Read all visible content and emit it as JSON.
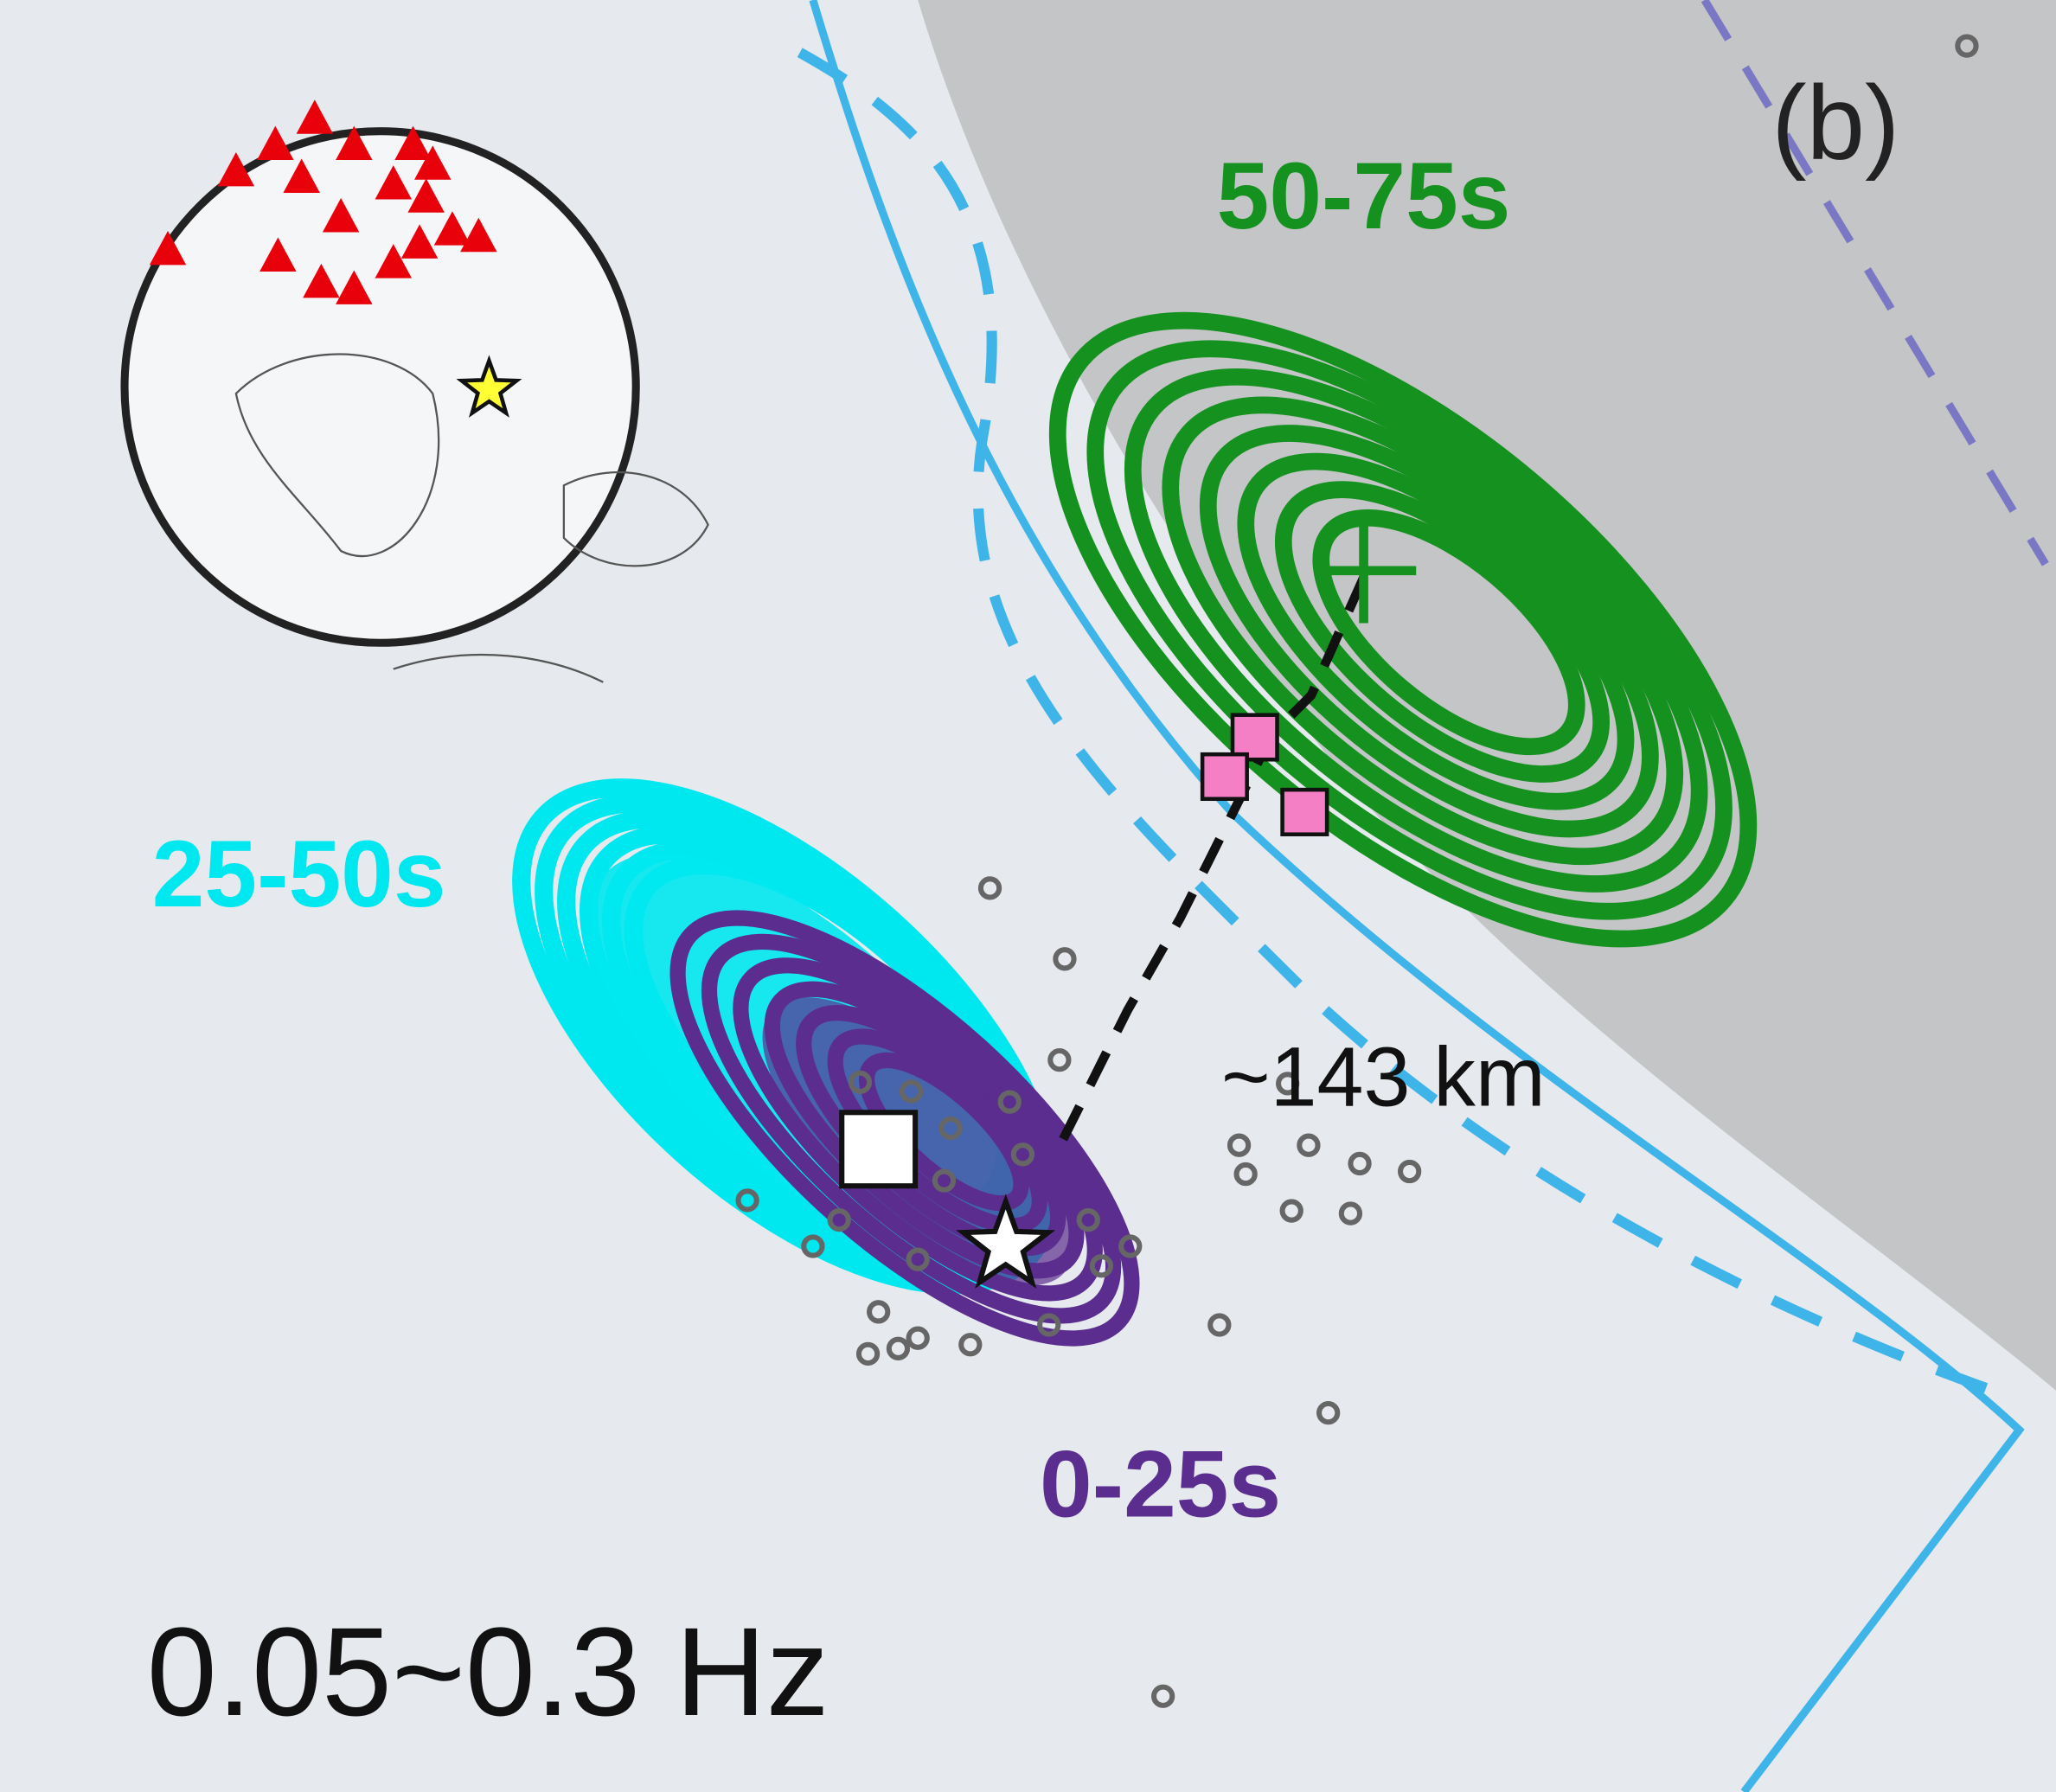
{
  "panel_label": "(b)",
  "windows": [
    {
      "label": "50-75s",
      "color": "#14911f"
    },
    {
      "label": "25-50s",
      "color": "#00e8ef"
    },
    {
      "label": "0-25s",
      "color": "#5b2d8e"
    }
  ],
  "distance_label": "~143 km",
  "frequency_label": "0.05~0.3 Hz"
}
